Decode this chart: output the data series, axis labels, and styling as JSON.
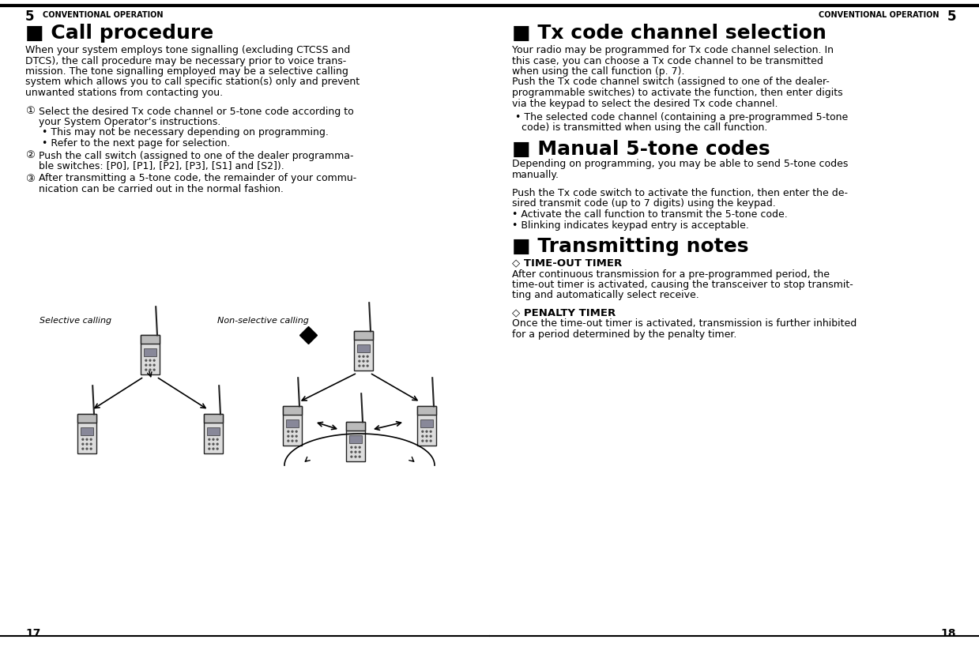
{
  "bg_color": "#ffffff",
  "text_color": "#000000",
  "fig_w": 12.39,
  "fig_h": 8.19,
  "dpi": 100,
  "left_page": {
    "chapter_num": "5",
    "chapter_title": "CONVENTIONAL OPERATION",
    "section_title": "■ Call procedure",
    "body_lines": [
      "When your system employs tone signalling (excluding CTCSS and",
      "DTCS), the call procedure may be necessary prior to voice trans-",
      "mission. The tone signalling employed may be a selective calling",
      "system which allows you to call specific station(s) only and prevent",
      "unwanted stations from contacting you."
    ],
    "step1_num": "①",
    "step1_lines": [
      "Select the desired Tx code channel or 5-tone code according to",
      "your System Operator’s instructions.",
      "• This may not be necessary depending on programming.",
      "• Refer to the next page for selection."
    ],
    "step2_num": "②",
    "step2_lines": [
      "Push the call switch (assigned to one of the dealer programma-",
      "ble switches: [P0], [P1], [P2], [P3], [S1] and [S2])."
    ],
    "step3_num": "③",
    "step3_lines": [
      "After transmitting a 5-tone code, the remainder of your commu-",
      "nication can be carried out in the normal fashion."
    ],
    "selective_label": "Selective calling",
    "non_selective_label": "Non-selective calling",
    "page_num": "17"
  },
  "right_page": {
    "chapter_num": "5",
    "chapter_title": "CONVENTIONAL OPERATION",
    "section1_title": "■ Tx code channel selection",
    "section1_lines": [
      "Your radio may be programmed for Tx code channel selection. In",
      "this case, you can choose a Tx code channel to be transmitted",
      "when using the call function (p. 7).",
      "Push the Tx code channel switch (assigned to one of the dealer-",
      "programmable switches) to activate the function, then enter digits",
      "via the keypad to select the desired Tx code channel."
    ],
    "section1_bullet_lines": [
      "• The selected code channel (containing a pre-programmed 5-tone",
      "  code) is transmitted when using the call function."
    ],
    "section2_title": "■ Manual 5-tone codes",
    "section2_lines": [
      "Depending on programming, you may be able to send 5-tone codes",
      "manually."
    ],
    "section2b_lines": [
      "Push the Tx code switch to activate the function, then enter the de-",
      "sired transmit code (up to 7 digits) using the keypad.",
      "• Activate the call function to transmit the 5-tone code.",
      "• Blinking indicates keypad entry is acceptable."
    ],
    "section3_title": "■ Transmitting notes",
    "sub1_title": "◇ TIME-OUT TIMER",
    "sub1_lines": [
      "After continuous transmission for a pre-programmed period, the",
      "time-out timer is activated, causing the transceiver to stop transmit-",
      "ting and automatically select receive."
    ],
    "sub2_title": "◇ PENALTY TIMER",
    "sub2_lines": [
      "Once the time-out timer is activated, transmission is further inhibited",
      "for a period determined by the penalty timer."
    ],
    "page_num": "18"
  }
}
